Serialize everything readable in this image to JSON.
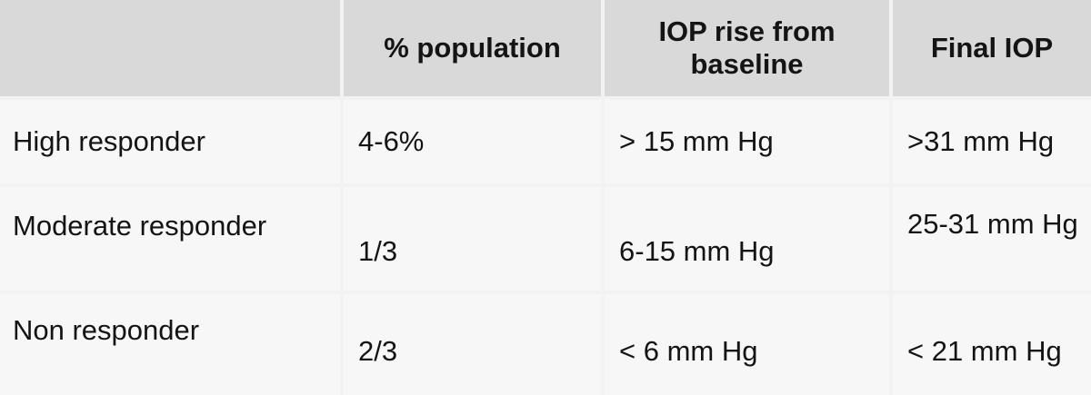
{
  "table": {
    "headers": [
      "",
      "% population",
      "IOP rise from baseline",
      "Final IOP"
    ],
    "rows": [
      [
        "High responder",
        "4-6%",
        "> 15 mm Hg",
        ">31 mm Hg"
      ],
      [
        "Moderate responder",
        "1/3",
        "6-15 mm Hg",
        "25-31 mm Hg"
      ],
      [
        "Non responder",
        "2/3",
        "< 6 mm Hg",
        "< 21 mm Hg"
      ]
    ]
  }
}
